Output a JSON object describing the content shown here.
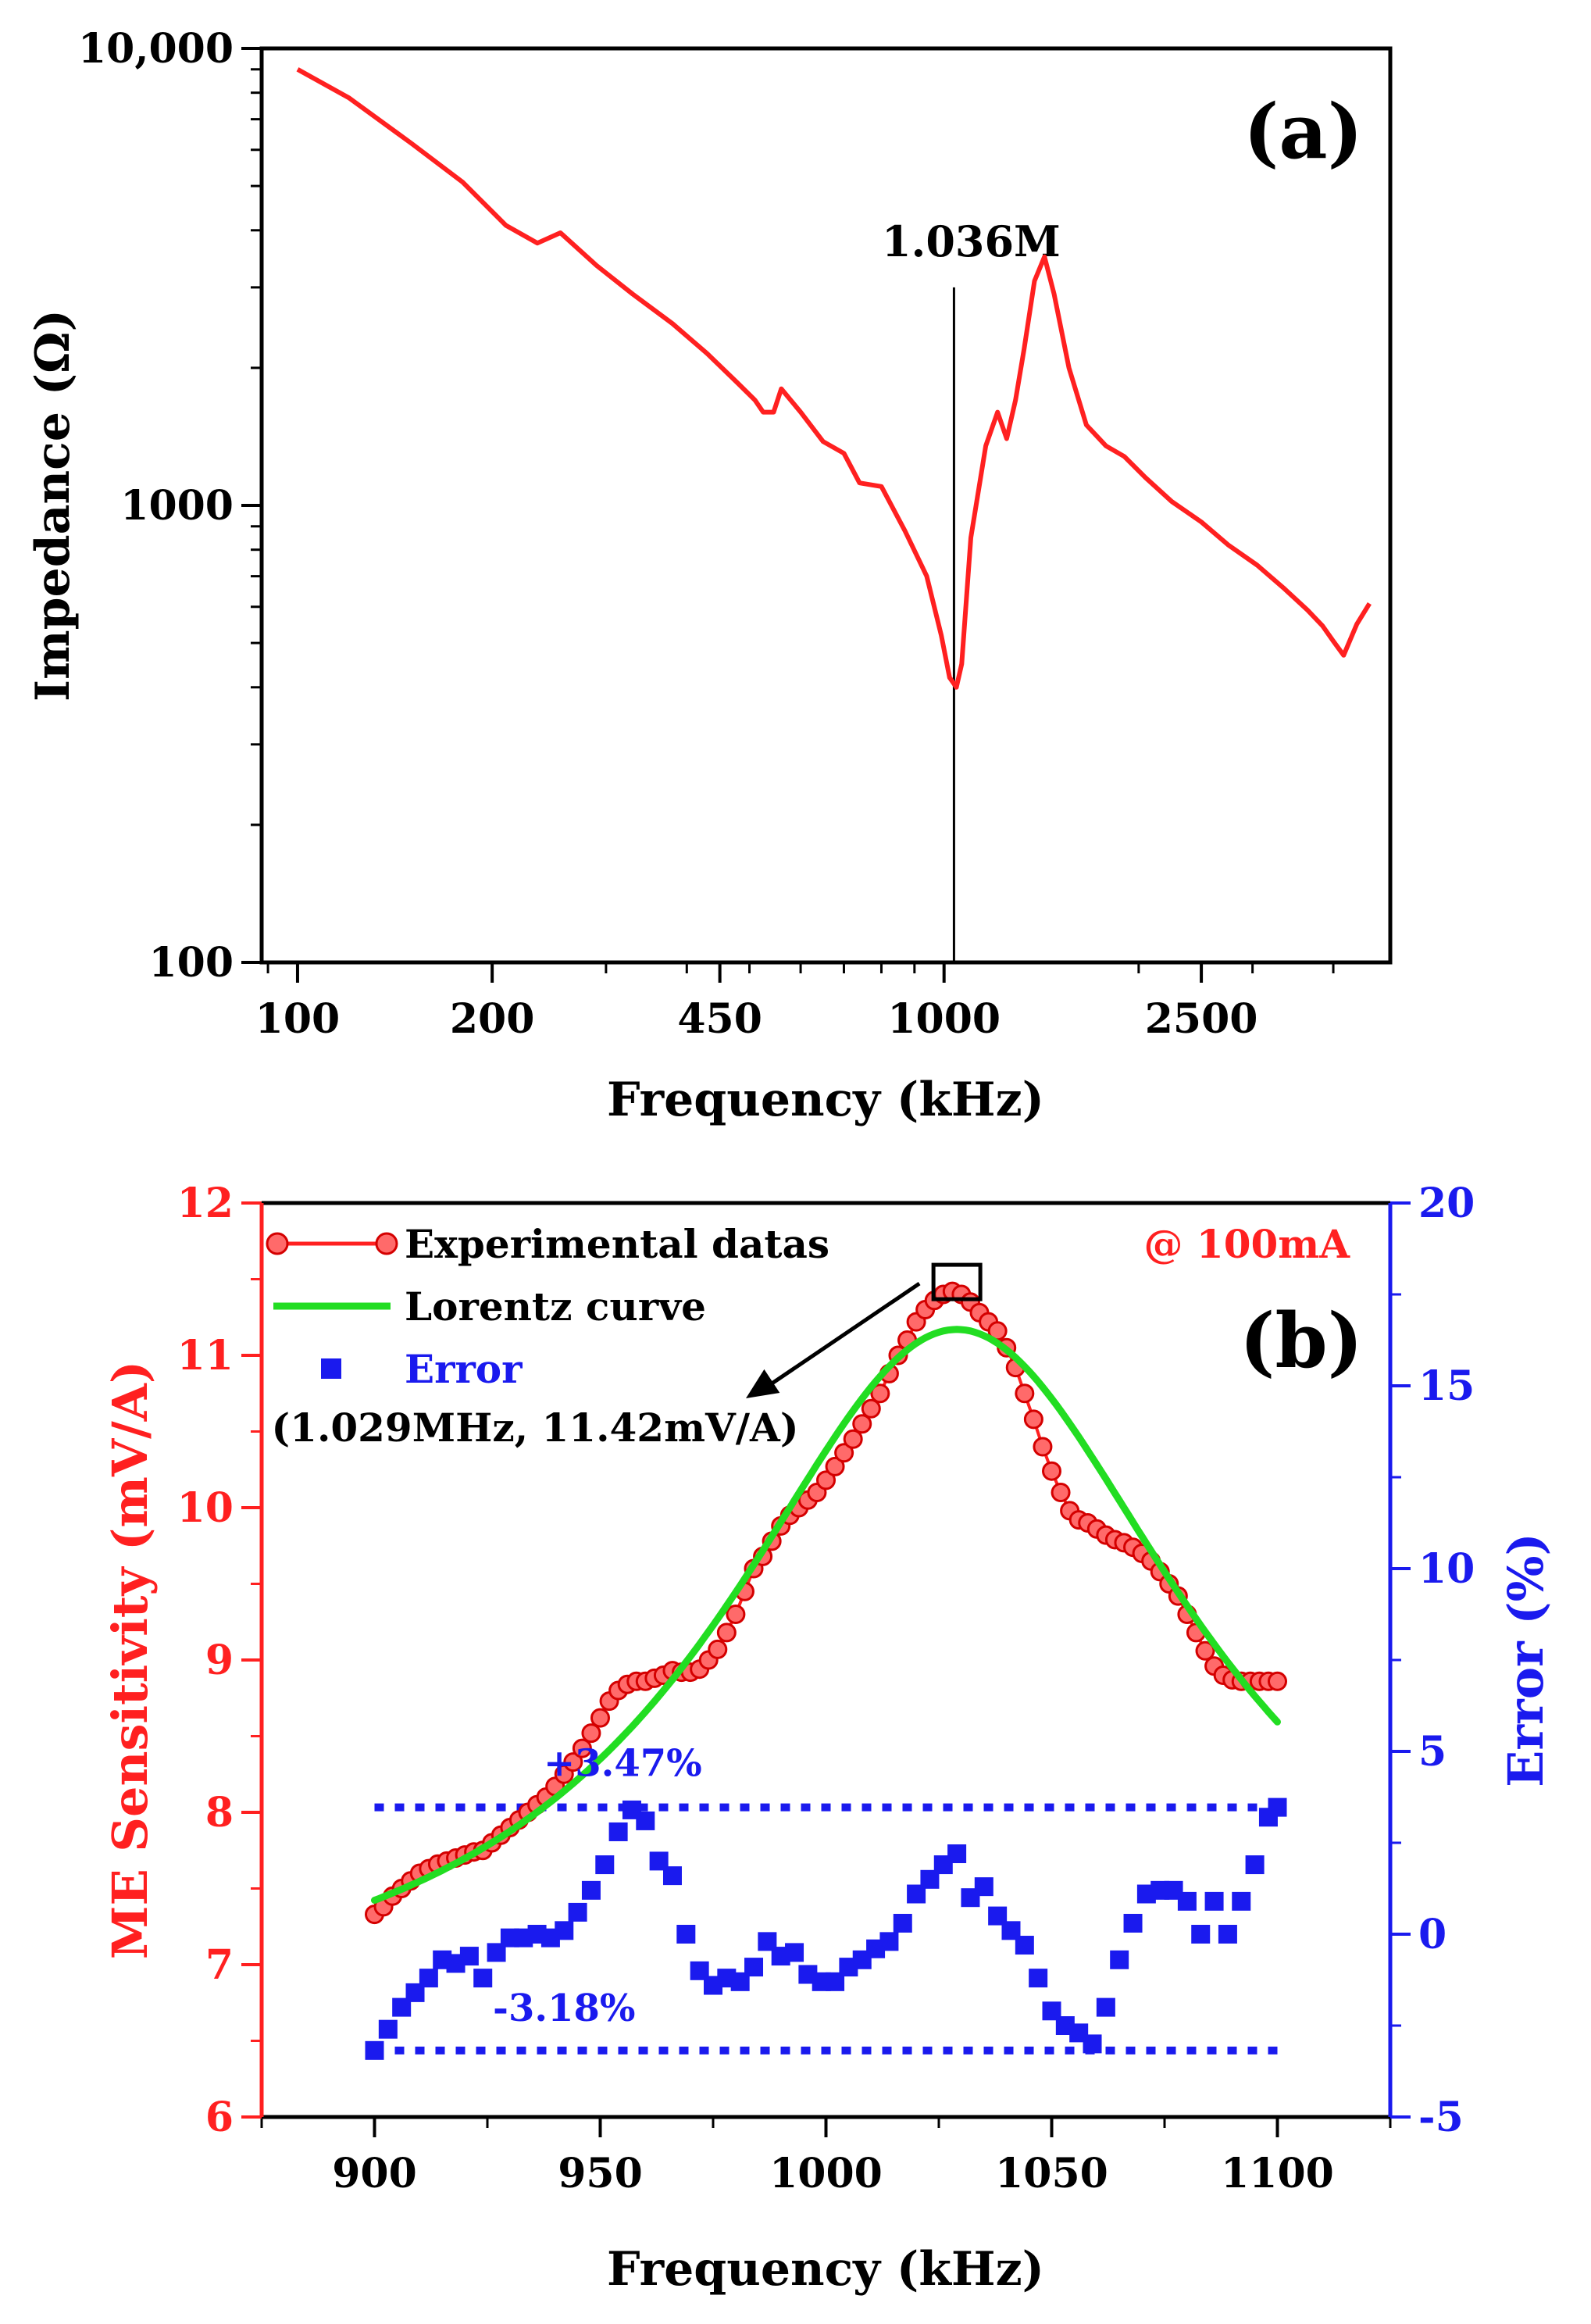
{
  "colors": {
    "impedance": "#ff2020",
    "experimental": "#ff2020",
    "lorentz": "#22dd22",
    "error": "#1a1aee",
    "axis_b_left": "#ff2020",
    "axis_b_right": "#1a1aee",
    "black": "#000000"
  },
  "chart_data": [
    {
      "panel": "(a)",
      "type": "line",
      "title": "",
      "xlabel": "Frequency (kHz)",
      "ylabel": "Impedance (Ω)",
      "xscale": "log",
      "yscale": "log",
      "xlim": [
        88,
        4900
      ],
      "ylim": [
        100,
        10000
      ],
      "xticks": [
        100,
        200,
        450,
        1000,
        2500
      ],
      "xtick_labels": [
        "100",
        "200",
        "450",
        "1000",
        "2500"
      ],
      "yticks": [
        100,
        1000,
        10000
      ],
      "ytick_labels": [
        "100",
        "1000",
        "10,000"
      ],
      "grid": false,
      "annotation": {
        "text": "1.036M",
        "x": 1036,
        "line_y": [
          100,
          3000
        ]
      },
      "series": [
        {
          "name": "",
          "color": "#ff2020",
          "x": [
            100,
            120,
            150,
            180,
            210,
            235,
            255,
            290,
            330,
            380,
            430,
            480,
            510,
            525,
            545,
            560,
            600,
            650,
            700,
            740,
            800,
            870,
            940,
            990,
            1020,
            1045,
            1065,
            1100,
            1160,
            1210,
            1250,
            1290,
            1330,
            1380,
            1430,
            1480,
            1560,
            1660,
            1780,
            1900,
            2050,
            2250,
            2500,
            2750,
            3050,
            3350,
            3650,
            3850,
            4000,
            4150,
            4350,
            4550
          ],
          "y": [
            9000,
            7800,
            6200,
            5100,
            4100,
            3750,
            3950,
            3350,
            2900,
            2500,
            2150,
            1850,
            1700,
            1600,
            1600,
            1800,
            1600,
            1380,
            1300,
            1120,
            1100,
            880,
            700,
            520,
            420,
            400,
            450,
            850,
            1350,
            1600,
            1400,
            1700,
            2200,
            3100,
            3500,
            2900,
            2000,
            1500,
            1350,
            1280,
            1150,
            1020,
            920,
            820,
            740,
            660,
            590,
            545,
            505,
            470,
            550,
            610
          ]
        }
      ]
    },
    {
      "panel": "(b)",
      "type": "line",
      "title": "",
      "xlabel": "Frequency (kHz)",
      "ylabel": "ME Sensitivity (mV/A)",
      "ylabel_right": "Error (%)",
      "xlim": [
        875,
        1125
      ],
      "ylim": [
        6,
        12
      ],
      "ylim_right": [
        -5,
        20
      ],
      "xticks": [
        900,
        950,
        1000,
        1050,
        1100
      ],
      "yticks": [
        6,
        7,
        8,
        9,
        10,
        11,
        12
      ],
      "yticks_right": [
        -5,
        0,
        5,
        10,
        15,
        20
      ],
      "grid": false,
      "legend_position": "top-left",
      "condition": "@ 100mA",
      "peak_annotation": {
        "text": "(1.029MHz, 11.42mV/A)",
        "x": 1029,
        "y": 11.42
      },
      "reference_lines": [
        {
          "label": "+3.47%",
          "y": 3.47
        },
        {
          "label": "-3.18%",
          "y": -3.18
        }
      ],
      "series": [
        {
          "name": "Experimental datas",
          "color": "#ff2020",
          "marker": "circle",
          "x": [
            900,
            902,
            904,
            906,
            908,
            910,
            912,
            914,
            916,
            918,
            920,
            922,
            924,
            926,
            928,
            930,
            932,
            934,
            936,
            938,
            940,
            942,
            944,
            946,
            948,
            950,
            952,
            954,
            956,
            958,
            960,
            962,
            964,
            966,
            968,
            970,
            972,
            974,
            976,
            978,
            980,
            982,
            984,
            986,
            988,
            990,
            992,
            994,
            996,
            998,
            1000,
            1002,
            1004,
            1006,
            1008,
            1010,
            1012,
            1014,
            1016,
            1018,
            1020,
            1022,
            1024,
            1026,
            1028,
            1030,
            1032,
            1034,
            1036,
            1038,
            1040,
            1042,
            1044,
            1046,
            1048,
            1050,
            1052,
            1054,
            1056,
            1058,
            1060,
            1062,
            1064,
            1066,
            1068,
            1070,
            1072,
            1074,
            1076,
            1078,
            1080,
            1082,
            1084,
            1086,
            1088,
            1090,
            1092,
            1094,
            1096,
            1098,
            1100
          ],
          "y": [
            7.33,
            7.38,
            7.45,
            7.5,
            7.55,
            7.6,
            7.63,
            7.66,
            7.68,
            7.7,
            7.72,
            7.74,
            7.75,
            7.8,
            7.85,
            7.9,
            7.95,
            8.0,
            8.05,
            8.1,
            8.17,
            8.25,
            8.33,
            8.42,
            8.52,
            8.62,
            8.73,
            8.8,
            8.84,
            8.86,
            8.86,
            8.88,
            8.9,
            8.93,
            8.92,
            8.92,
            8.94,
            9.0,
            9.07,
            9.18,
            9.3,
            9.45,
            9.6,
            9.68,
            9.78,
            9.88,
            9.95,
            10.0,
            10.05,
            10.1,
            10.18,
            10.27,
            10.36,
            10.45,
            10.55,
            10.65,
            10.75,
            10.88,
            11.0,
            11.1,
            11.22,
            11.3,
            11.36,
            11.4,
            11.42,
            11.4,
            11.35,
            11.28,
            11.22,
            11.16,
            11.05,
            10.92,
            10.75,
            10.58,
            10.4,
            10.24,
            10.1,
            9.98,
            9.92,
            9.9,
            9.86,
            9.82,
            9.79,
            9.77,
            9.74,
            9.7,
            9.65,
            9.58,
            9.5,
            9.42,
            9.3,
            9.18,
            9.06,
            8.96,
            8.9,
            8.87,
            8.86,
            8.86,
            8.86,
            8.86,
            8.86
          ]
        },
        {
          "name": "Lorentz curve",
          "color": "#22dd22",
          "lorentz": {
            "x0": 1029,
            "w": 128,
            "y0": 6.5,
            "amp": 4.67
          },
          "x_range": [
            900,
            1100
          ]
        },
        {
          "name": "Error",
          "color": "#1a1aee",
          "marker": "square",
          "axis": "right",
          "x": [
            900,
            903,
            906,
            909,
            912,
            915,
            918,
            921,
            924,
            927,
            930,
            933,
            936,
            939,
            942,
            945,
            948,
            951,
            954,
            957,
            960,
            963,
            966,
            969,
            972,
            975,
            978,
            981,
            984,
            987,
            990,
            993,
            996,
            999,
            1002,
            1005,
            1008,
            1011,
            1014,
            1017,
            1020,
            1023,
            1026,
            1029,
            1032,
            1035,
            1038,
            1041,
            1044,
            1047,
            1050,
            1053,
            1056,
            1059,
            1062,
            1065,
            1068,
            1071,
            1074,
            1077,
            1080,
            1083,
            1086,
            1089,
            1092,
            1095,
            1098,
            1100
          ],
          "y": [
            -3.18,
            -2.6,
            -2.0,
            -1.6,
            -1.2,
            -0.7,
            -0.8,
            -0.6,
            -1.2,
            -0.5,
            -0.1,
            -0.1,
            0.0,
            -0.1,
            0.1,
            0.6,
            1.2,
            1.9,
            2.8,
            3.4,
            3.1,
            2.0,
            1.6,
            0.0,
            -1.0,
            -1.4,
            -1.2,
            -1.3,
            -0.9,
            -0.2,
            -0.6,
            -0.5,
            -1.1,
            -1.3,
            -1.3,
            -0.9,
            -0.7,
            -0.4,
            -0.2,
            0.3,
            1.1,
            1.5,
            1.9,
            2.2,
            1.0,
            1.3,
            0.5,
            0.1,
            -0.3,
            -1.2,
            -2.1,
            -2.5,
            -2.7,
            -3.0,
            -2.0,
            -0.7,
            0.3,
            1.1,
            1.2,
            1.2,
            0.9,
            0.0,
            0.9,
            0.0,
            0.9,
            1.9,
            3.2,
            3.47
          ]
        }
      ]
    }
  ]
}
